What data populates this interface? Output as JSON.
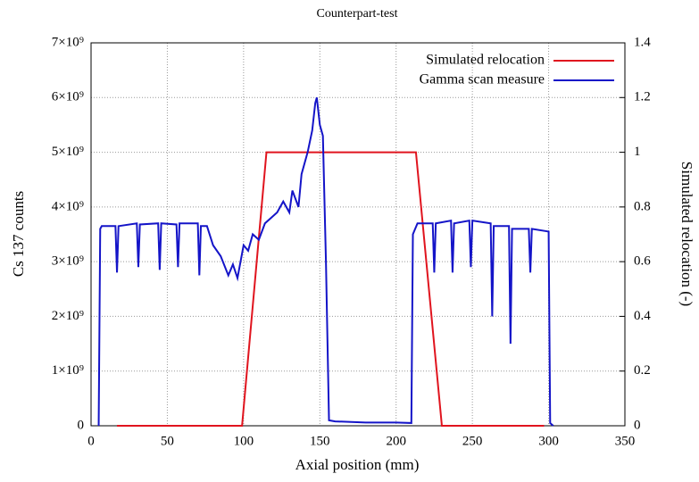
{
  "chart_data": {
    "type": "line",
    "title": "Counterpart-test",
    "x_label": "Axial position (mm)",
    "y_label": "Cs 137 counts",
    "y2_label": "Simulated relocation (-)",
    "xlim": [
      0,
      350
    ],
    "xticks": [
      0,
      50,
      100,
      150,
      200,
      250,
      300,
      350
    ],
    "ylim": [
      0,
      7000000000
    ],
    "yticks": [
      0,
      {
        "value": 1000000000,
        "label": "1×10⁹"
      },
      {
        "value": 2000000000,
        "label": "2×10⁹"
      },
      {
        "value": 3000000000,
        "label": "3×10⁹"
      },
      {
        "value": 4000000000,
        "label": "4×10⁹"
      },
      {
        "value": 5000000000,
        "label": "5×10⁹"
      },
      {
        "value": 6000000000,
        "label": "6×10⁹"
      },
      {
        "value": 7000000000,
        "label": "7×10⁹"
      }
    ],
    "y2lim": [
      0,
      1.4
    ],
    "y2ticks": [
      0,
      0.2,
      0.4,
      0.6,
      0.8,
      1,
      1.2,
      1.4
    ],
    "grid": true,
    "legend": "top-right",
    "series": [
      {
        "name": "Simulated relocation",
        "color": "#e0141e",
        "axis": "y2",
        "x": [
          17,
          99,
          115,
          213,
          230,
          297
        ],
        "values": [
          0,
          0,
          1,
          1,
          0,
          0
        ]
      },
      {
        "name": "Gamma scan measure",
        "color": "#1414c8",
        "x": [
          5,
          6,
          7,
          16,
          17,
          18,
          30,
          31,
          32,
          44,
          45,
          46,
          56,
          57,
          58,
          70,
          71,
          72,
          76,
          80,
          85,
          90,
          93,
          96,
          100,
          103,
          106,
          110,
          114,
          118,
          122,
          126,
          130,
          132,
          136,
          138,
          142,
          145,
          147,
          148,
          150,
          152,
          154,
          156,
          160,
          180,
          200,
          210,
          211,
          214,
          224,
          225,
          226,
          236,
          237,
          238,
          248,
          249,
          250,
          262,
          263,
          264,
          274,
          275,
          276,
          287,
          288,
          289,
          300,
          301,
          303
        ],
        "values": [
          0,
          3600000000,
          3650000000,
          3650000000,
          2800000000,
          3650000000,
          3700000000,
          2900000000,
          3680000000,
          3700000000,
          2850000000,
          3700000000,
          3680000000,
          2900000000,
          3700000000,
          3700000000,
          2750000000,
          3650000000,
          3650000000,
          3300000000,
          3100000000,
          2750000000,
          2950000000,
          2700000000,
          3300000000,
          3200000000,
          3500000000,
          3400000000,
          3700000000,
          3800000000,
          3900000000,
          4100000000,
          3900000000,
          4300000000,
          4000000000,
          4600000000,
          5000000000,
          5400000000,
          5900000000,
          6000000000,
          5500000000,
          5300000000,
          3000000000,
          100000000,
          80000000,
          60000000,
          60000000,
          50000000,
          3500000000,
          3700000000,
          3700000000,
          2800000000,
          3700000000,
          3750000000,
          2800000000,
          3700000000,
          3750000000,
          2900000000,
          3750000000,
          3700000000,
          2000000000,
          3650000000,
          3650000000,
          1500000000,
          3600000000,
          3600000000,
          2800000000,
          3600000000,
          3550000000,
          50000000,
          0
        ]
      }
    ]
  }
}
